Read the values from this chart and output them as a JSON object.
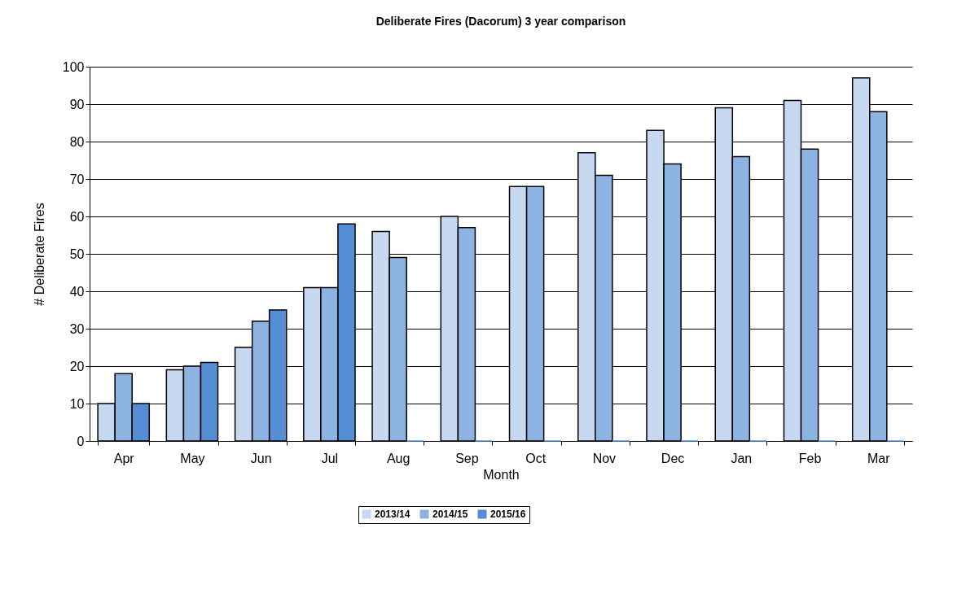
{
  "chart_data": {
    "type": "bar",
    "title": "Deliberate Fires (Dacorum) 3 year comparison",
    "xlabel": "Month",
    "ylabel": "# Deliberate Fires",
    "categories": [
      "Apr",
      "May",
      "Jun",
      "Jul",
      "Aug",
      "Sep",
      "Oct",
      "Nov",
      "Dec",
      "Jan",
      "Feb",
      "Mar"
    ],
    "series": [
      {
        "name": "2013/14",
        "color": "#c6d9f1",
        "values": [
          10,
          19,
          25,
          41,
          56,
          60,
          68,
          77,
          83,
          89,
          91,
          97
        ]
      },
      {
        "name": "2014/15",
        "color": "#8db3e2",
        "values": [
          18,
          20,
          32,
          41,
          49,
          57,
          68,
          71,
          74,
          76,
          78,
          88
        ]
      },
      {
        "name": "2015/16",
        "color": "#558ed5",
        "values": [
          10,
          21,
          35,
          58,
          0,
          0,
          0,
          0,
          0,
          0,
          0,
          0
        ]
      }
    ],
    "ylim": [
      0,
      100
    ],
    "yticks": [
      0,
      10,
      20,
      30,
      40,
      50,
      60,
      70,
      80,
      90,
      100
    ],
    "grid": "y",
    "legend": "bottom"
  }
}
